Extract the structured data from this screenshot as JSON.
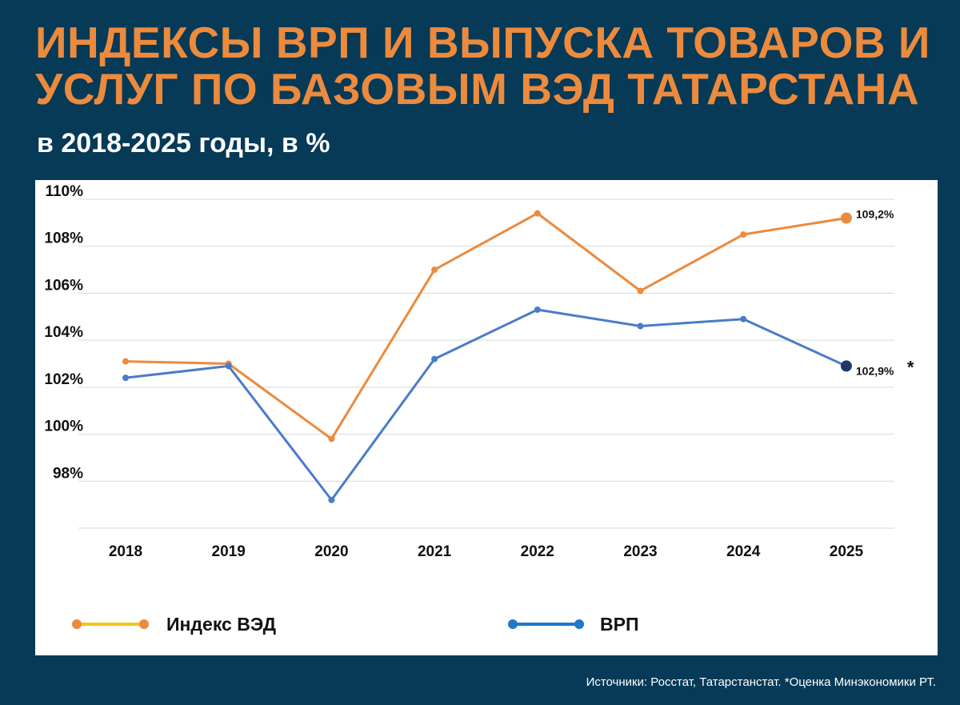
{
  "header": {
    "title": "ИНДЕКСЫ ВРП И ВЫПУСКА ТОВАРОВ И УСЛУГ ПО БАЗОВЫМ ВЭД ТАТАРСТАНА",
    "subtitle": "в 2018-2025 годы, в %"
  },
  "footer": {
    "source": "Источники: Росстат, Татарстанстат. *Оценка Минэкономики РТ."
  },
  "colors": {
    "background": "#063a57",
    "title": "#ec8a3d",
    "ved": "#ec8a3d",
    "vrp": "#4a7cc9",
    "vrp_marker": "#1c3a64",
    "ved_legend_line": "#f5c518",
    "vrp_legend_line": "#1f78c8"
  },
  "chart_data": {
    "type": "line",
    "x": [
      "2018",
      "2019",
      "2020",
      "2021",
      "2022",
      "2023",
      "2024",
      "2025"
    ],
    "ylim": [
      96,
      110
    ],
    "yticks": [
      98,
      100,
      102,
      104,
      106,
      108,
      110
    ],
    "ytick_labels": [
      "98%",
      "100%",
      "102%",
      "104%",
      "106%",
      "108%",
      "110%"
    ],
    "grid": true,
    "legend_position": "bottom",
    "series": [
      {
        "name": "Индекс ВЭД",
        "values": [
          103.1,
          103.0,
          99.8,
          107.0,
          109.4,
          106.1,
          108.5,
          109.2
        ]
      },
      {
        "name": "ВРП",
        "values": [
          102.4,
          102.9,
          97.2,
          103.2,
          105.3,
          104.6,
          104.9,
          102.9
        ]
      }
    ],
    "annotations": [
      {
        "series": 0,
        "label": "109,2%"
      },
      {
        "series": 1,
        "label": "102,9%",
        "mark": "*"
      }
    ]
  }
}
